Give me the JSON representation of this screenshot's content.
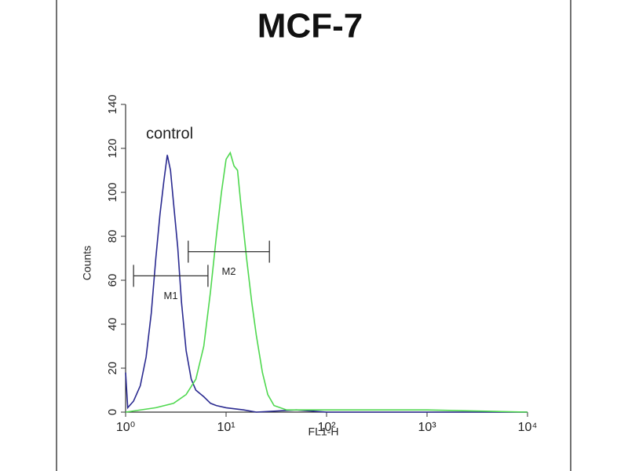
{
  "chart_data": {
    "type": "line",
    "title": "MCF-7",
    "x_label": "FL1-H",
    "y_label": "Counts",
    "log_x": true,
    "xlim": [
      1,
      10000
    ],
    "xticks": [
      {
        "value": 1,
        "label": "10⁰"
      },
      {
        "value": 10,
        "label": "10¹"
      },
      {
        "value": 100,
        "label": "10²"
      },
      {
        "value": 1000,
        "label": "10³"
      },
      {
        "value": 10000,
        "label": "10⁴"
      }
    ],
    "ylim": [
      0,
      140
    ],
    "yticks": [
      0,
      20,
      40,
      60,
      80,
      100,
      120,
      140
    ],
    "series": [
      {
        "name": "control",
        "color": "#2a2a90",
        "x": [
          1.0,
          1.05,
          1.2,
          1.4,
          1.6,
          1.8,
          2.0,
          2.2,
          2.4,
          2.6,
          2.8,
          3.0,
          3.3,
          3.6,
          4.0,
          4.5,
          5.0,
          6,
          7,
          8,
          10,
          15,
          20,
          50,
          100,
          10000
        ],
        "values": [
          18,
          2,
          5,
          12,
          25,
          45,
          70,
          90,
          105,
          117,
          110,
          95,
          75,
          50,
          28,
          15,
          10,
          7,
          4,
          3,
          2,
          1,
          0,
          1,
          0,
          0
        ]
      },
      {
        "color": "#4fd84f",
        "x": [
          1,
          2,
          3,
          4,
          5,
          6,
          7,
          8,
          9,
          10,
          11,
          12,
          13,
          14,
          16,
          18,
          20,
          23,
          26,
          30,
          40,
          100,
          1000,
          10000
        ],
        "values": [
          0,
          2,
          4,
          8,
          15,
          30,
          55,
          80,
          100,
          115,
          118,
          112,
          110,
          95,
          70,
          50,
          35,
          18,
          8,
          3,
          1,
          1,
          1,
          0
        ]
      }
    ],
    "markers": [
      {
        "label": "M1",
        "x": [
          1.2,
          6.6
        ],
        "y": 62
      },
      {
        "label": "M2",
        "x": [
          4.2,
          27
        ],
        "y": 73
      }
    ]
  }
}
